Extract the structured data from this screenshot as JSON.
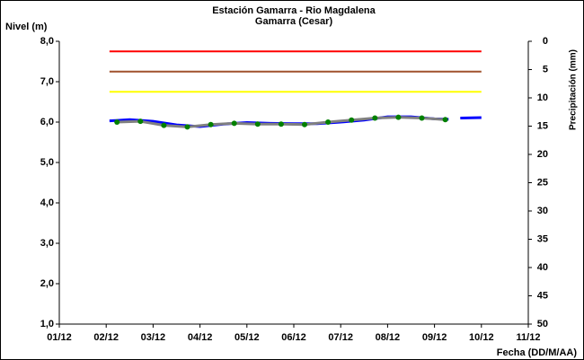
{
  "chart_data": {
    "type": "line",
    "title": "Estación Gamarra - Rio Magdalena",
    "subtitle": "Gamarra (Cesar)",
    "ylabel": "Nivel (m)",
    "y2label": "Precipitación (mm)",
    "xlabel": "Fecha (DD/M/AA)",
    "xlim": [
      0,
      10
    ],
    "xticks": [
      {
        "value": 0,
        "label": "01/12"
      },
      {
        "value": 1,
        "label": "02/12"
      },
      {
        "value": 2,
        "label": "03/12"
      },
      {
        "value": 3,
        "label": "04/12"
      },
      {
        "value": 4,
        "label": "05/12"
      },
      {
        "value": 5,
        "label": "06/12"
      },
      {
        "value": 6,
        "label": "07/12"
      },
      {
        "value": 7,
        "label": "08/12"
      },
      {
        "value": 8,
        "label": "09/12"
      },
      {
        "value": 9,
        "label": "10/12"
      },
      {
        "value": 10,
        "label": "11/12"
      }
    ],
    "ylim": [
      1,
      8
    ],
    "yticks": [
      {
        "value": 1,
        "label": "1,0"
      },
      {
        "value": 2,
        "label": "2,0"
      },
      {
        "value": 3,
        "label": "3,0"
      },
      {
        "value": 4,
        "label": "4,0"
      },
      {
        "value": 5,
        "label": "5,0"
      },
      {
        "value": 6,
        "label": "6,0"
      },
      {
        "value": 7,
        "label": "7,0"
      },
      {
        "value": 8,
        "label": "8,0"
      }
    ],
    "y2lim": [
      0,
      50
    ],
    "y2_inverted": true,
    "y2ticks": [
      0,
      5,
      10,
      15,
      20,
      25,
      30,
      35,
      40,
      45,
      50
    ],
    "series": [
      {
        "color": "#ff0000",
        "width": 2,
        "x": [
          1.07,
          9.0
        ],
        "values": [
          7.75,
          7.75
        ]
      },
      {
        "color": "#a0522d",
        "width": 2,
        "x": [
          1.07,
          9.0
        ],
        "values": [
          7.25,
          7.25
        ]
      },
      {
        "color": "#ffff00",
        "width": 2,
        "x": [
          1.07,
          9.0
        ],
        "values": [
          6.75,
          6.75
        ]
      },
      {
        "color": "#0000ff",
        "width": 3,
        "x": [
          1.07,
          1.5,
          2.0,
          2.5,
          3.0,
          3.5,
          4.0,
          4.5,
          5.0,
          5.5,
          6.0,
          6.5,
          7.0,
          7.5,
          8.0,
          8.3,
          8.45,
          8.55,
          9.0
        ],
        "values": [
          6.03,
          6.06,
          6.02,
          5.93,
          5.89,
          5.95,
          5.99,
          5.97,
          5.96,
          5.96,
          6.0,
          6.05,
          6.13,
          6.13,
          6.08,
          6.07,
          null,
          6.1,
          6.11
        ]
      },
      {
        "color": "#808080",
        "width": 3,
        "marker_color": "#008000",
        "x": [
          1.23,
          1.73,
          2.23,
          2.73,
          3.23,
          3.73,
          4.23,
          4.73,
          5.23,
          5.73,
          6.23,
          6.73,
          7.23,
          7.73,
          8.23
        ],
        "values": [
          6.0,
          6.02,
          5.92,
          5.88,
          5.94,
          5.97,
          5.95,
          5.95,
          5.94,
          6.0,
          6.05,
          6.1,
          6.12,
          6.1,
          6.06
        ]
      }
    ]
  }
}
